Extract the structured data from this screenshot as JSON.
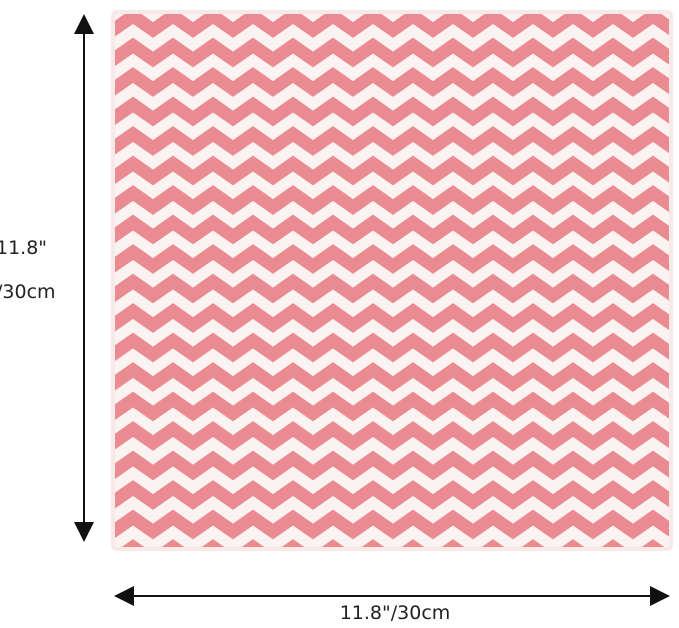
{
  "dimensions": {
    "height_label": [
      "11.8\"",
      "/30cm"
    ],
    "width_label": "11.8\"/30cm"
  }
}
